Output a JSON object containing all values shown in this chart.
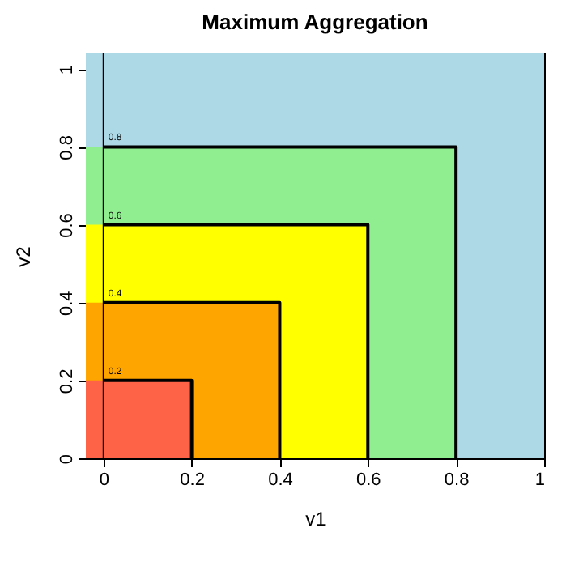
{
  "chart_data": {
    "type": "area",
    "title": "Maximum Aggregation",
    "xlabel": "v1",
    "ylabel": "v2",
    "xlim": [
      -0.04,
      1
    ],
    "ylim": [
      0,
      1.04
    ],
    "xticks": [
      0,
      0.2,
      0.4,
      0.6,
      0.8,
      1
    ],
    "yticks": [
      0,
      0.2,
      0.4,
      0.6,
      0.8,
      1
    ],
    "grid": false,
    "series": [
      {
        "color": "#90ee90",
        "x": [
          -0.04,
          0.8
        ],
        "values": [
          0.8,
          0.8
        ]
      },
      {
        "color": "#ffff00",
        "x": [
          -0.04,
          0.6
        ],
        "values": [
          0.6,
          0.6
        ]
      },
      {
        "color": "#ffa500",
        "x": [
          -0.04,
          0.4
        ],
        "values": [
          0.4,
          0.4
        ]
      },
      {
        "color": "#ff6347",
        "x": [
          -0.04,
          0.2
        ],
        "values": [
          0.2,
          0.2
        ]
      },
      {
        "type": "line",
        "name": "0.8",
        "color": "#000000",
        "x": [
          0,
          0.8,
          0.8
        ],
        "values": [
          0.8,
          0.8,
          0
        ]
      },
      {
        "type": "line",
        "name": "0.6",
        "color": "#000000",
        "x": [
          0,
          0.6,
          0.6
        ],
        "values": [
          0.6,
          0.6,
          0
        ]
      },
      {
        "type": "line",
        "name": "0.4",
        "color": "#000000",
        "x": [
          0,
          0.4,
          0.4
        ],
        "values": [
          0.4,
          0.4,
          0
        ]
      },
      {
        "type": "line",
        "name": "0.2",
        "color": "#000000",
        "x": [
          0,
          0.2,
          0.2
        ],
        "values": [
          0.2,
          0.2,
          0
        ]
      }
    ],
    "bands": [
      {
        "axis": "y",
        "from": 0,
        "to": 1.04,
        "color": "#add8e6"
      }
    ],
    "ref_lines": [
      {
        "axis": "x",
        "value": 0
      }
    ]
  }
}
